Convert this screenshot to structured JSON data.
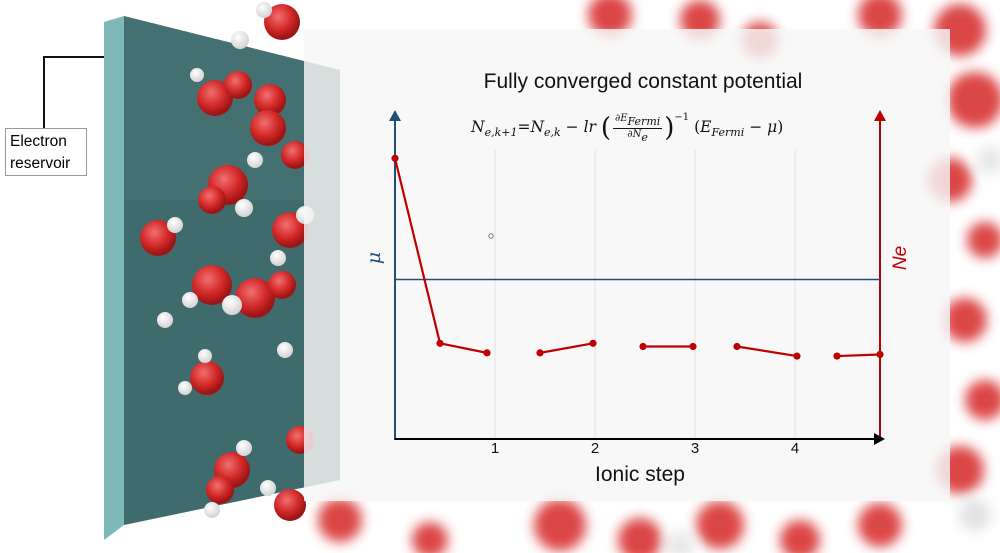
{
  "reservoir_label": [
    "Electron",
    "reservoir"
  ],
  "title": "Fully converged constant potential",
  "equation": {
    "lhs": "N",
    "lhs_sub": "e,k+1",
    "eq": "=",
    "rhs_n": "N",
    "rhs_n_sub": "e,k",
    "minus": "−",
    "lr": "lr",
    "frac_num": "∂E",
    "frac_num_sub": "Fermi",
    "frac_den": "∂N",
    "frac_den_sub": "e",
    "exp": "−1",
    "paren_e": "E",
    "paren_e_sub": "Fermi",
    "paren_rest": "− μ"
  },
  "chart_data": {
    "type": "line",
    "xlabel": "Ionic step",
    "ylabel_left": "μ",
    "ylabel_right": "Ne",
    "x_ticks": [
      "1",
      "2",
      "3",
      "4"
    ],
    "mu_level": 0.5,
    "segments": [
      {
        "x": [
          0.0,
          0.45,
          0.92
        ],
        "y": [
          0.88,
          0.3,
          0.27
        ]
      },
      {
        "x": [
          1.45,
          1.98
        ],
        "y": [
          0.27,
          0.3
        ]
      },
      {
        "x": [
          2.48,
          2.98
        ],
        "y": [
          0.29,
          0.29
        ]
      },
      {
        "x": [
          3.42,
          4.02
        ],
        "y": [
          0.29,
          0.26
        ]
      },
      {
        "x": [
          4.42,
          4.85
        ],
        "y": [
          0.26,
          0.265
        ]
      }
    ],
    "xlim": [
      0,
      4.85
    ],
    "ylim": [
      0,
      1
    ],
    "colors": {
      "mu": "#1f4e79",
      "ne": "#c00000"
    }
  }
}
